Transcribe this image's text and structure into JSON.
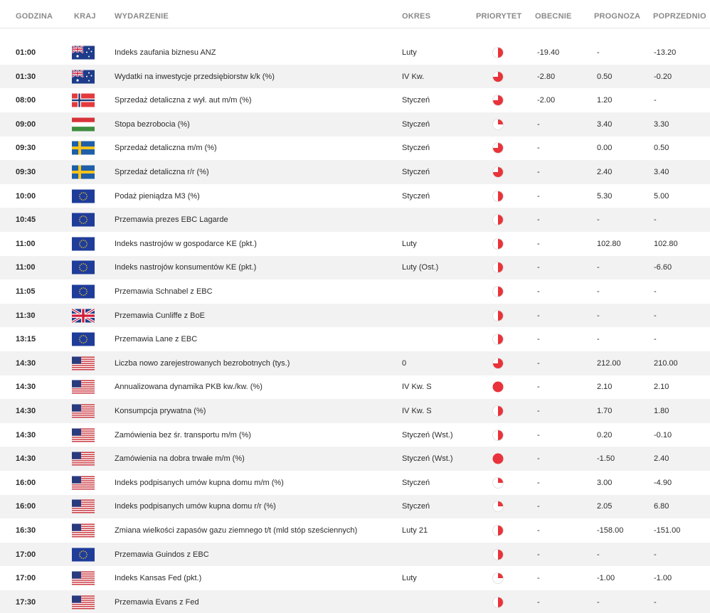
{
  "header": {
    "godzina": "GODZINA",
    "kraj": "KRAJ",
    "wydarzenie": "WYDARZENIE",
    "okres": "OKRES",
    "priorytet": "PRIORYTET",
    "obecnie": "OBECNIE",
    "prognoza": "PROGNOZA",
    "poprzednio": "POPRZEDNIO"
  },
  "colors": {
    "accent": "#e8333a",
    "row_alt": "#f2f2f2",
    "header_text": "#8a8a8a"
  },
  "rows": [
    {
      "time": "01:00",
      "country": "au",
      "event": "Indeks zaufania biznesu ANZ",
      "period": "Luty",
      "priority": "medium",
      "actual": "-19.40",
      "forecast": "-",
      "previous": "-13.20"
    },
    {
      "time": "01:30",
      "country": "au",
      "event": "Wydatki na inwestycje przedsiębiorstw k/k (%)",
      "period": "IV Kw.",
      "priority": "high",
      "actual": "-2.80",
      "forecast": "0.50",
      "previous": "-0.20"
    },
    {
      "time": "08:00",
      "country": "no",
      "event": "Sprzedaż detaliczna z wył. aut m/m (%)",
      "period": "Styczeń",
      "priority": "high",
      "actual": "-2.00",
      "forecast": "1.20",
      "previous": "-"
    },
    {
      "time": "09:00",
      "country": "hu",
      "event": "Stopa bezrobocia (%)",
      "period": "Styczeń",
      "priority": "low",
      "actual": "-",
      "forecast": "3.40",
      "previous": "3.30"
    },
    {
      "time": "09:30",
      "country": "se",
      "event": "Sprzedaż detaliczna m/m (%)",
      "period": "Styczeń",
      "priority": "high",
      "actual": "-",
      "forecast": "0.00",
      "previous": "0.50"
    },
    {
      "time": "09:30",
      "country": "se",
      "event": "Sprzedaż detaliczna r/r (%)",
      "period": "Styczeń",
      "priority": "high",
      "actual": "-",
      "forecast": "2.40",
      "previous": "3.40"
    },
    {
      "time": "10:00",
      "country": "eu",
      "event": "Podaż pieniądza M3 (%)",
      "period": "Styczeń",
      "priority": "medium",
      "actual": "-",
      "forecast": "5.30",
      "previous": "5.00"
    },
    {
      "time": "10:45",
      "country": "eu",
      "event": "Przemawia prezes EBC Lagarde",
      "period": "",
      "priority": "medium",
      "actual": "-",
      "forecast": "-",
      "previous": "-"
    },
    {
      "time": "11:00",
      "country": "eu",
      "event": "Indeks nastrojów w gospodarce KE (pkt.)",
      "period": "Luty",
      "priority": "medium",
      "actual": "-",
      "forecast": "102.80",
      "previous": "102.80"
    },
    {
      "time": "11:00",
      "country": "eu",
      "event": "Indeks nastrojów konsumentów KE (pkt.)",
      "period": "Luty (Ost.)",
      "priority": "medium",
      "actual": "-",
      "forecast": "-",
      "previous": "-6.60"
    },
    {
      "time": "11:05",
      "country": "eu",
      "event": "Przemawia Schnabel z EBC",
      "period": "",
      "priority": "medium",
      "actual": "-",
      "forecast": "-",
      "previous": "-"
    },
    {
      "time": "11:30",
      "country": "gb",
      "event": "Przemawia Cunliffe z BoE",
      "period": "",
      "priority": "medium",
      "actual": "-",
      "forecast": "-",
      "previous": "-"
    },
    {
      "time": "13:15",
      "country": "eu",
      "event": "Przemawia Lane z EBC",
      "period": "",
      "priority": "medium",
      "actual": "-",
      "forecast": "-",
      "previous": "-"
    },
    {
      "time": "14:30",
      "country": "us",
      "event": "Liczba nowo zarejestrowanych bezrobotnych (tys.)",
      "period": "0",
      "priority": "high",
      "actual": "-",
      "forecast": "212.00",
      "previous": "210.00"
    },
    {
      "time": "14:30",
      "country": "us",
      "event": "Annualizowana dynamika PKB kw./kw. (%)",
      "period": "IV Kw. S",
      "priority": "full",
      "actual": "-",
      "forecast": "2.10",
      "previous": "2.10"
    },
    {
      "time": "14:30",
      "country": "us",
      "event": "Konsumpcja prywatna (%)",
      "period": "IV Kw. S",
      "priority": "medium",
      "actual": "-",
      "forecast": "1.70",
      "previous": "1.80"
    },
    {
      "time": "14:30",
      "country": "us",
      "event": "Zamówienia bez śr. transportu m/m (%)",
      "period": "Styczeń (Wst.)",
      "priority": "medium",
      "actual": "-",
      "forecast": "0.20",
      "previous": "-0.10"
    },
    {
      "time": "14:30",
      "country": "us",
      "event": "Zamówienia na dobra trwałe m/m (%)",
      "period": "Styczeń (Wst.)",
      "priority": "full",
      "actual": "-",
      "forecast": "-1.50",
      "previous": "2.40"
    },
    {
      "time": "16:00",
      "country": "us",
      "event": "Indeks podpisanych umów kupna domu m/m (%)",
      "period": "Styczeń",
      "priority": "low",
      "actual": "-",
      "forecast": "3.00",
      "previous": "-4.90"
    },
    {
      "time": "16:00",
      "country": "us",
      "event": "Indeks podpisanych umów kupna domu r/r (%)",
      "period": "Styczeń",
      "priority": "low",
      "actual": "-",
      "forecast": "2.05",
      "previous": "6.80"
    },
    {
      "time": "16:30",
      "country": "us",
      "event": "Zmiana wielkości zapasów gazu ziemnego t/t (mld stóp sześciennych)",
      "period": "Luty 21",
      "priority": "medium",
      "actual": "-",
      "forecast": "-158.00",
      "previous": "-151.00"
    },
    {
      "time": "17:00",
      "country": "eu",
      "event": "Przemawia Guindos z EBC",
      "period": "",
      "priority": "medium",
      "actual": "-",
      "forecast": "-",
      "previous": "-"
    },
    {
      "time": "17:00",
      "country": "us",
      "event": "Indeks Kansas Fed (pkt.)",
      "period": "Luty",
      "priority": "low",
      "actual": "-",
      "forecast": "-1.00",
      "previous": "-1.00"
    },
    {
      "time": "17:30",
      "country": "us",
      "event": "Przemawia Evans z Fed",
      "period": "",
      "priority": "medium",
      "actual": "-",
      "forecast": "-",
      "previous": "-"
    }
  ]
}
